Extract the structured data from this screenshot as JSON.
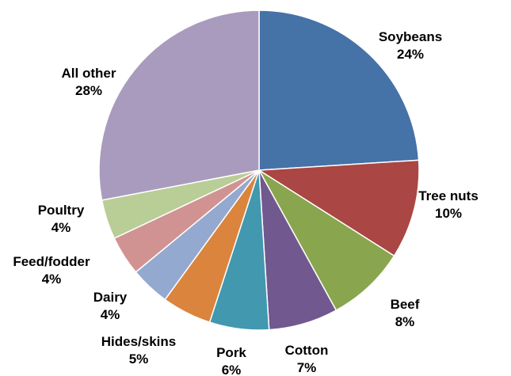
{
  "chart_data": {
    "type": "pie",
    "title": "",
    "start_angle_deg": 0,
    "direction": "clockwise",
    "slices": [
      {
        "label": "Soybeans",
        "value": 24,
        "value_label": "24%",
        "color": "#4572A7"
      },
      {
        "label": "Tree nuts",
        "value": 10,
        "value_label": "10%",
        "color": "#AA4643"
      },
      {
        "label": "Beef",
        "value": 8,
        "value_label": "8%",
        "color": "#89A54E"
      },
      {
        "label": "Cotton",
        "value": 7,
        "value_label": "7%",
        "color": "#71588F"
      },
      {
        "label": "Pork",
        "value": 6,
        "value_label": "6%",
        "color": "#4198AF"
      },
      {
        "label": "Hides/skins",
        "value": 5,
        "value_label": "5%",
        "color": "#DB843D"
      },
      {
        "label": "Dairy",
        "value": 4,
        "value_label": "4%",
        "color": "#93A9CF"
      },
      {
        "label": "Feed/fodder",
        "value": 4,
        "value_label": "4%",
        "color": "#D19392"
      },
      {
        "label": "Poultry",
        "value": 4,
        "value_label": "4%",
        "color": "#B9CD96"
      },
      {
        "label": "All other",
        "value": 28,
        "value_label": "28%",
        "color": "#A99BBD"
      }
    ]
  }
}
